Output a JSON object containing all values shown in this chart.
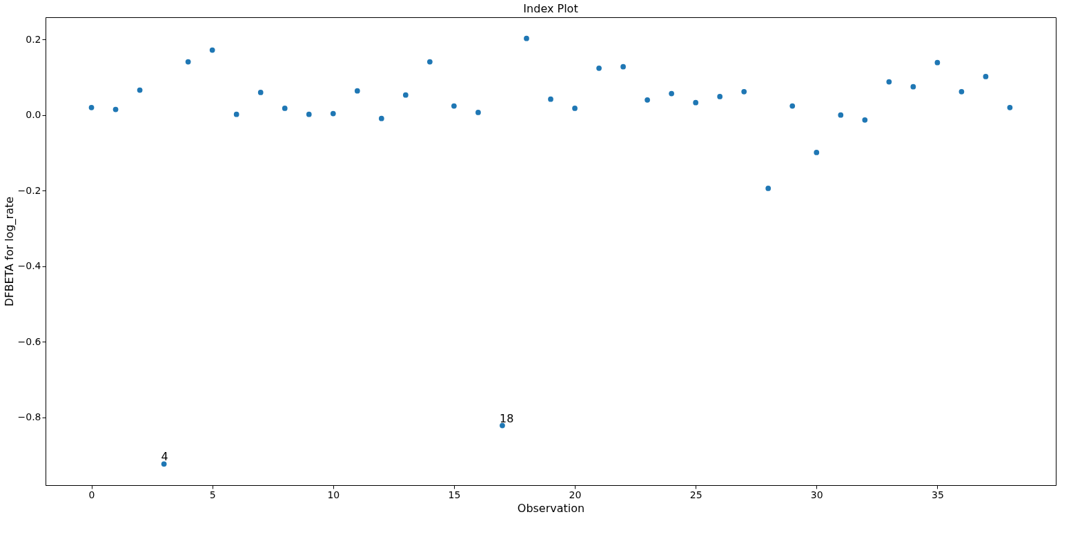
{
  "chart_data": {
    "type": "scatter",
    "title": "Index Plot",
    "xlabel": "Observation",
    "ylabel": "DFBETA for log_rate",
    "x": [
      0,
      1,
      2,
      3,
      4,
      5,
      6,
      7,
      8,
      9,
      10,
      11,
      12,
      13,
      14,
      15,
      16,
      17,
      18,
      19,
      20,
      21,
      22,
      23,
      24,
      25,
      26,
      27,
      28,
      29,
      30,
      31,
      32,
      33,
      34,
      35,
      36,
      37,
      38
    ],
    "series": [
      {
        "color": "#1f77b4",
        "values": [
          0.02,
          0.015,
          0.066,
          -0.924,
          0.141,
          0.172,
          0.002,
          0.06,
          0.018,
          0.002,
          0.004,
          0.064,
          -0.009,
          0.053,
          0.141,
          0.024,
          0.007,
          -0.822,
          0.203,
          0.042,
          0.018,
          0.124,
          0.128,
          0.04,
          0.057,
          0.033,
          0.049,
          0.062,
          -0.194,
          0.024,
          -0.099,
          0.0,
          -0.013,
          0.088,
          0.075,
          0.139,
          0.062,
          0.102,
          0.02
        ]
      }
    ],
    "annotations": [
      {
        "text": "4",
        "x": 3,
        "y": -0.924
      },
      {
        "text": "18",
        "x": 17,
        "y": -0.822
      }
    ],
    "xlim": [
      -1.9,
      39.9
    ],
    "ylim": [
      -0.98,
      0.259
    ],
    "xticks": [
      0,
      5,
      10,
      15,
      20,
      25,
      30,
      35
    ],
    "yticks": [
      {
        "value": -0.8,
        "label": "−0.8"
      },
      {
        "value": -0.6,
        "label": "−0.6"
      },
      {
        "value": -0.4,
        "label": "−0.4"
      },
      {
        "value": -0.2,
        "label": "−0.2"
      },
      {
        "value": 0.0,
        "label": "0.0"
      },
      {
        "value": 0.2,
        "label": "0.2"
      }
    ],
    "marker": "circle",
    "grid": false
  }
}
